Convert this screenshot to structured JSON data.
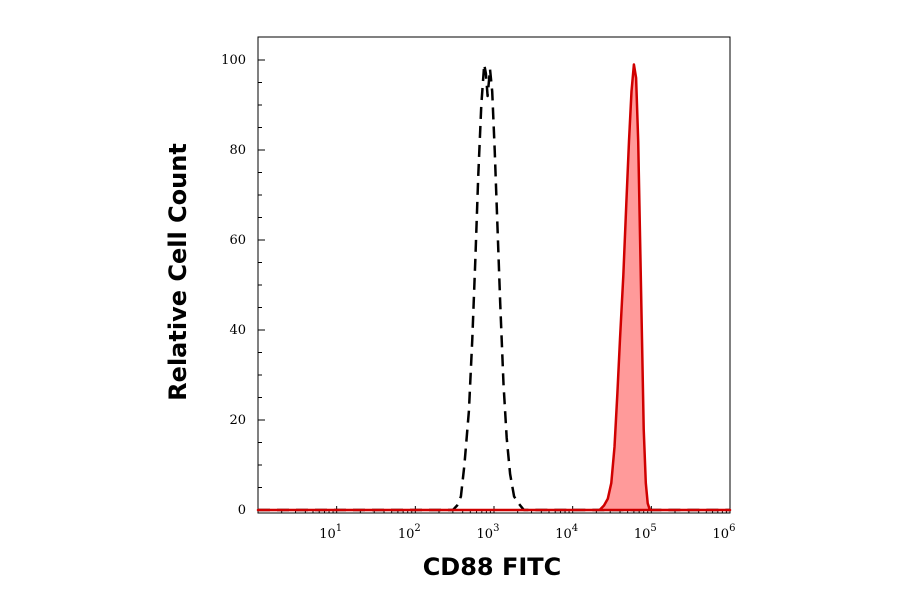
{
  "chart_data": {
    "type": "area",
    "xlabel": "CD88 FITC",
    "ylabel": "Relative Cell Count",
    "x_scale": "log10",
    "xlim": [
      1,
      1000000
    ],
    "ylim": [
      0,
      100
    ],
    "x_ticks": [
      {
        "base": "10",
        "exp": "1",
        "value": 10
      },
      {
        "base": "10",
        "exp": "2",
        "value": 100
      },
      {
        "base": "10",
        "exp": "3",
        "value": 1000
      },
      {
        "base": "10",
        "exp": "4",
        "value": 10000
      },
      {
        "base": "10",
        "exp": "5",
        "value": 100000
      },
      {
        "base": "10",
        "exp": "6",
        "value": 1000000
      }
    ],
    "y_ticks": [
      "0",
      "20",
      "40",
      "60",
      "80",
      "100"
    ],
    "grid": false,
    "series": [
      {
        "style": "dashed-line",
        "color": "#000000",
        "points": [
          [
            1,
            0
          ],
          [
            300,
            0
          ],
          [
            340,
            1
          ],
          [
            380,
            3
          ],
          [
            420,
            10
          ],
          [
            480,
            22
          ],
          [
            530,
            38
          ],
          [
            580,
            56
          ],
          [
            630,
            74
          ],
          [
            690,
            90
          ],
          [
            750,
            99
          ],
          [
            790,
            97
          ],
          [
            830,
            92
          ],
          [
            890,
            98
          ],
          [
            950,
            93
          ],
          [
            1020,
            80
          ],
          [
            1100,
            64
          ],
          [
            1200,
            46
          ],
          [
            1320,
            28
          ],
          [
            1450,
            16
          ],
          [
            1600,
            8
          ],
          [
            1800,
            3
          ],
          [
            2050,
            1.5
          ],
          [
            2400,
            0
          ],
          [
            1000000,
            0
          ]
        ]
      },
      {
        "style": "filled",
        "color": "#d00000",
        "fill": "#ff9a9a",
        "points": [
          [
            1,
            0
          ],
          [
            22000,
            0
          ],
          [
            25000,
            1
          ],
          [
            28000,
            2.5
          ],
          [
            31000,
            6
          ],
          [
            34000,
            14
          ],
          [
            37000,
            26
          ],
          [
            40000,
            38
          ],
          [
            44000,
            52
          ],
          [
            48000,
            68
          ],
          [
            52000,
            82
          ],
          [
            56000,
            93
          ],
          [
            60000,
            99
          ],
          [
            64000,
            96
          ],
          [
            68000,
            82
          ],
          [
            72000,
            60
          ],
          [
            76000,
            38
          ],
          [
            80000,
            18
          ],
          [
            85000,
            6
          ],
          [
            90000,
            1.5
          ],
          [
            96000,
            0
          ],
          [
            1000000,
            0
          ]
        ]
      }
    ]
  }
}
